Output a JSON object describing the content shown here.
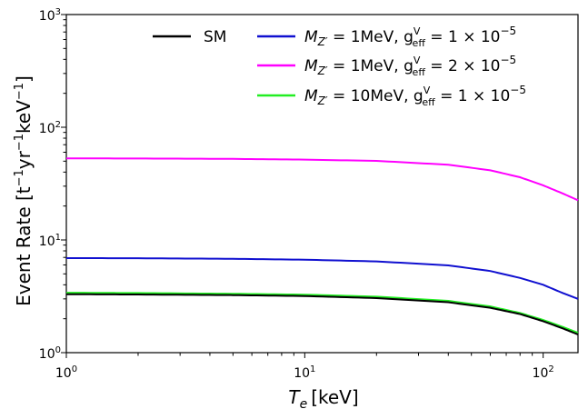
{
  "chart_data": {
    "type": "line",
    "x_scale": "log",
    "y_scale": "log",
    "xlim": [
      1,
      140
    ],
    "ylim": [
      1,
      1000
    ],
    "xlabel": {
      "symbol": "T",
      "subscript": "e",
      "units": "[keV]"
    },
    "ylabel": {
      "prefix": "Event Rate [t",
      "exp1": "−1",
      "mid": "yr",
      "exp2": "−1",
      "mid2": "keV",
      "exp3": "−1",
      "suffix": "]"
    },
    "x_ticks": [
      {
        "value": 1,
        "base": "10",
        "exp": "0"
      },
      {
        "value": 10,
        "base": "10",
        "exp": "1"
      },
      {
        "value": 100,
        "base": "10",
        "exp": "2"
      }
    ],
    "y_ticks": [
      {
        "value": 1,
        "base": "10",
        "exp": "0"
      },
      {
        "value": 10,
        "base": "10",
        "exp": "1"
      },
      {
        "value": 100,
        "base": "10",
        "exp": "2"
      },
      {
        "value": 1000,
        "base": "10",
        "exp": "3"
      }
    ],
    "legend_position": "top-right",
    "series": [
      {
        "name": "SM",
        "color": "#000000",
        "x": [
          1,
          2,
          5,
          10,
          20,
          40,
          60,
          80,
          100,
          120,
          140
        ],
        "y": [
          3.3,
          3.28,
          3.24,
          3.18,
          3.05,
          2.8,
          2.5,
          2.2,
          1.9,
          1.65,
          1.45
        ]
      },
      {
        "name": "mz1_g1",
        "label_model": "1MeV",
        "label_coupling": "1 × 10",
        "label_exp": "−5",
        "color": "#1010d0",
        "x": [
          1,
          2,
          5,
          10,
          20,
          40,
          60,
          80,
          100,
          120,
          140
        ],
        "y": [
          6.9,
          6.88,
          6.8,
          6.68,
          6.45,
          5.95,
          5.3,
          4.6,
          4.0,
          3.4,
          3.0
        ]
      },
      {
        "name": "mz1_g2",
        "label_model": "1MeV",
        "label_coupling": "2 × 10",
        "label_exp": "−5",
        "color": "#ff00ff",
        "x": [
          1,
          2,
          5,
          10,
          20,
          40,
          60,
          80,
          100,
          120,
          140
        ],
        "y": [
          53,
          52.8,
          52.4,
          51.6,
          50.3,
          46.5,
          41.5,
          36.0,
          30.5,
          26.0,
          22.5
        ]
      },
      {
        "name": "mz10_g1",
        "label_model": "10MeV",
        "label_coupling": "1 × 10",
        "label_exp": "−5",
        "color": "#22ee22",
        "x": [
          1,
          2,
          5,
          10,
          20,
          40,
          60,
          80,
          100,
          120,
          140
        ],
        "y": [
          3.4,
          3.38,
          3.33,
          3.27,
          3.14,
          2.88,
          2.57,
          2.25,
          1.95,
          1.7,
          1.5
        ]
      }
    ],
    "legend": {
      "sm_label": "SM",
      "mass_symbol": "M",
      "mass_sub": "Z′",
      "eq": " = ",
      "coupling_symbol": "g",
      "coupling_sup": "V",
      "coupling_sub": "eff"
    }
  }
}
